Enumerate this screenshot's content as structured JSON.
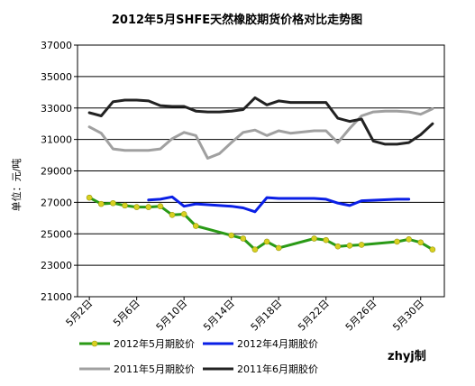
{
  "chart_data": {
    "type": "line",
    "title": "2012年5月SHFE天然橡胶期货价格对比走势图",
    "ylabel": "单位：元/吨",
    "xlabel": "",
    "ylim": [
      21000,
      37000
    ],
    "yticks": [
      21000,
      23000,
      25000,
      27000,
      29000,
      31000,
      33000,
      35000,
      37000
    ],
    "xlim": [
      1,
      32
    ],
    "xticks": [
      {
        "x": 2,
        "label": "5月2日"
      },
      {
        "x": 6,
        "label": "5月6日"
      },
      {
        "x": 10,
        "label": "5月10日"
      },
      {
        "x": 14,
        "label": "5月14日"
      },
      {
        "x": 18,
        "label": "5月18日"
      },
      {
        "x": 22,
        "label": "5月22日"
      },
      {
        "x": 26,
        "label": "5月26日"
      },
      {
        "x": 30,
        "label": "5月30日"
      }
    ],
    "grid": true,
    "legend": "bottom",
    "watermark": "zhyj制",
    "series": [
      {
        "name": "2012年5月期胶价",
        "color": "#2a9a16",
        "marker": "#d8d020",
        "values": [
          [
            2,
            27300
          ],
          [
            3,
            26900
          ],
          [
            4,
            26950
          ],
          [
            5,
            26800
          ],
          [
            6,
            26700
          ],
          [
            7,
            26700
          ],
          [
            8,
            26750
          ],
          [
            9,
            26200
          ],
          [
            10,
            26250
          ],
          [
            11,
            25500
          ],
          [
            14,
            24900
          ],
          [
            15,
            24700
          ],
          [
            16,
            24000
          ],
          [
            17,
            24500
          ],
          [
            18,
            24100
          ],
          [
            21,
            24700
          ],
          [
            22,
            24600
          ],
          [
            23,
            24200
          ],
          [
            24,
            24250
          ],
          [
            25,
            24300
          ],
          [
            28,
            24500
          ],
          [
            29,
            24650
          ],
          [
            30,
            24450
          ],
          [
            31,
            24000
          ]
        ]
      },
      {
        "name": "2012年4月期胶价",
        "color": "#0a1fe6",
        "marker": null,
        "values": [
          [
            7,
            27150
          ],
          [
            8,
            27200
          ],
          [
            9,
            27350
          ],
          [
            10,
            26750
          ],
          [
            11,
            26900
          ],
          [
            14,
            26750
          ],
          [
            15,
            26650
          ],
          [
            16,
            26400
          ],
          [
            17,
            27300
          ],
          [
            18,
            27250
          ],
          [
            21,
            27250
          ],
          [
            22,
            27200
          ],
          [
            23,
            26950
          ],
          [
            24,
            26800
          ],
          [
            25,
            27100
          ],
          [
            28,
            27200
          ],
          [
            29,
            27200
          ]
        ]
      },
      {
        "name": "2011年5月期胶价",
        "color": "#a0a0a0",
        "marker": null,
        "values": [
          [
            2,
            31800
          ],
          [
            3,
            31400
          ],
          [
            4,
            30400
          ],
          [
            5,
            30300
          ],
          [
            6,
            30300
          ],
          [
            7,
            30300
          ],
          [
            8,
            30400
          ],
          [
            9,
            31050
          ],
          [
            10,
            31450
          ],
          [
            11,
            31250
          ],
          [
            12,
            29800
          ],
          [
            13,
            30100
          ],
          [
            14,
            30800
          ],
          [
            15,
            31450
          ],
          [
            16,
            31600
          ],
          [
            17,
            31250
          ],
          [
            18,
            31550
          ],
          [
            19,
            31400
          ],
          [
            21,
            31550
          ],
          [
            22,
            31550
          ],
          [
            23,
            30800
          ],
          [
            24,
            31700
          ],
          [
            25,
            32500
          ],
          [
            26,
            32750
          ],
          [
            27,
            32800
          ],
          [
            28,
            32800
          ],
          [
            29,
            32750
          ],
          [
            30,
            32600
          ],
          [
            31,
            32950
          ]
        ]
      },
      {
        "name": "2011年6月期胶价",
        "color": "#222222",
        "marker": null,
        "values": [
          [
            2,
            32700
          ],
          [
            3,
            32500
          ],
          [
            4,
            33400
          ],
          [
            5,
            33500
          ],
          [
            6,
            33500
          ],
          [
            7,
            33450
          ],
          [
            8,
            33150
          ],
          [
            9,
            33100
          ],
          [
            10,
            33100
          ],
          [
            11,
            32800
          ],
          [
            12,
            32750
          ],
          [
            13,
            32750
          ],
          [
            14,
            32800
          ],
          [
            15,
            32900
          ],
          [
            16,
            33650
          ],
          [
            17,
            33200
          ],
          [
            18,
            33450
          ],
          [
            19,
            33350
          ],
          [
            21,
            33350
          ],
          [
            22,
            33350
          ],
          [
            23,
            32350
          ],
          [
            24,
            32150
          ],
          [
            25,
            32300
          ],
          [
            26,
            30900
          ],
          [
            27,
            30700
          ],
          [
            28,
            30700
          ],
          [
            29,
            30800
          ],
          [
            30,
            31300
          ],
          [
            31,
            32000
          ]
        ]
      }
    ]
  }
}
